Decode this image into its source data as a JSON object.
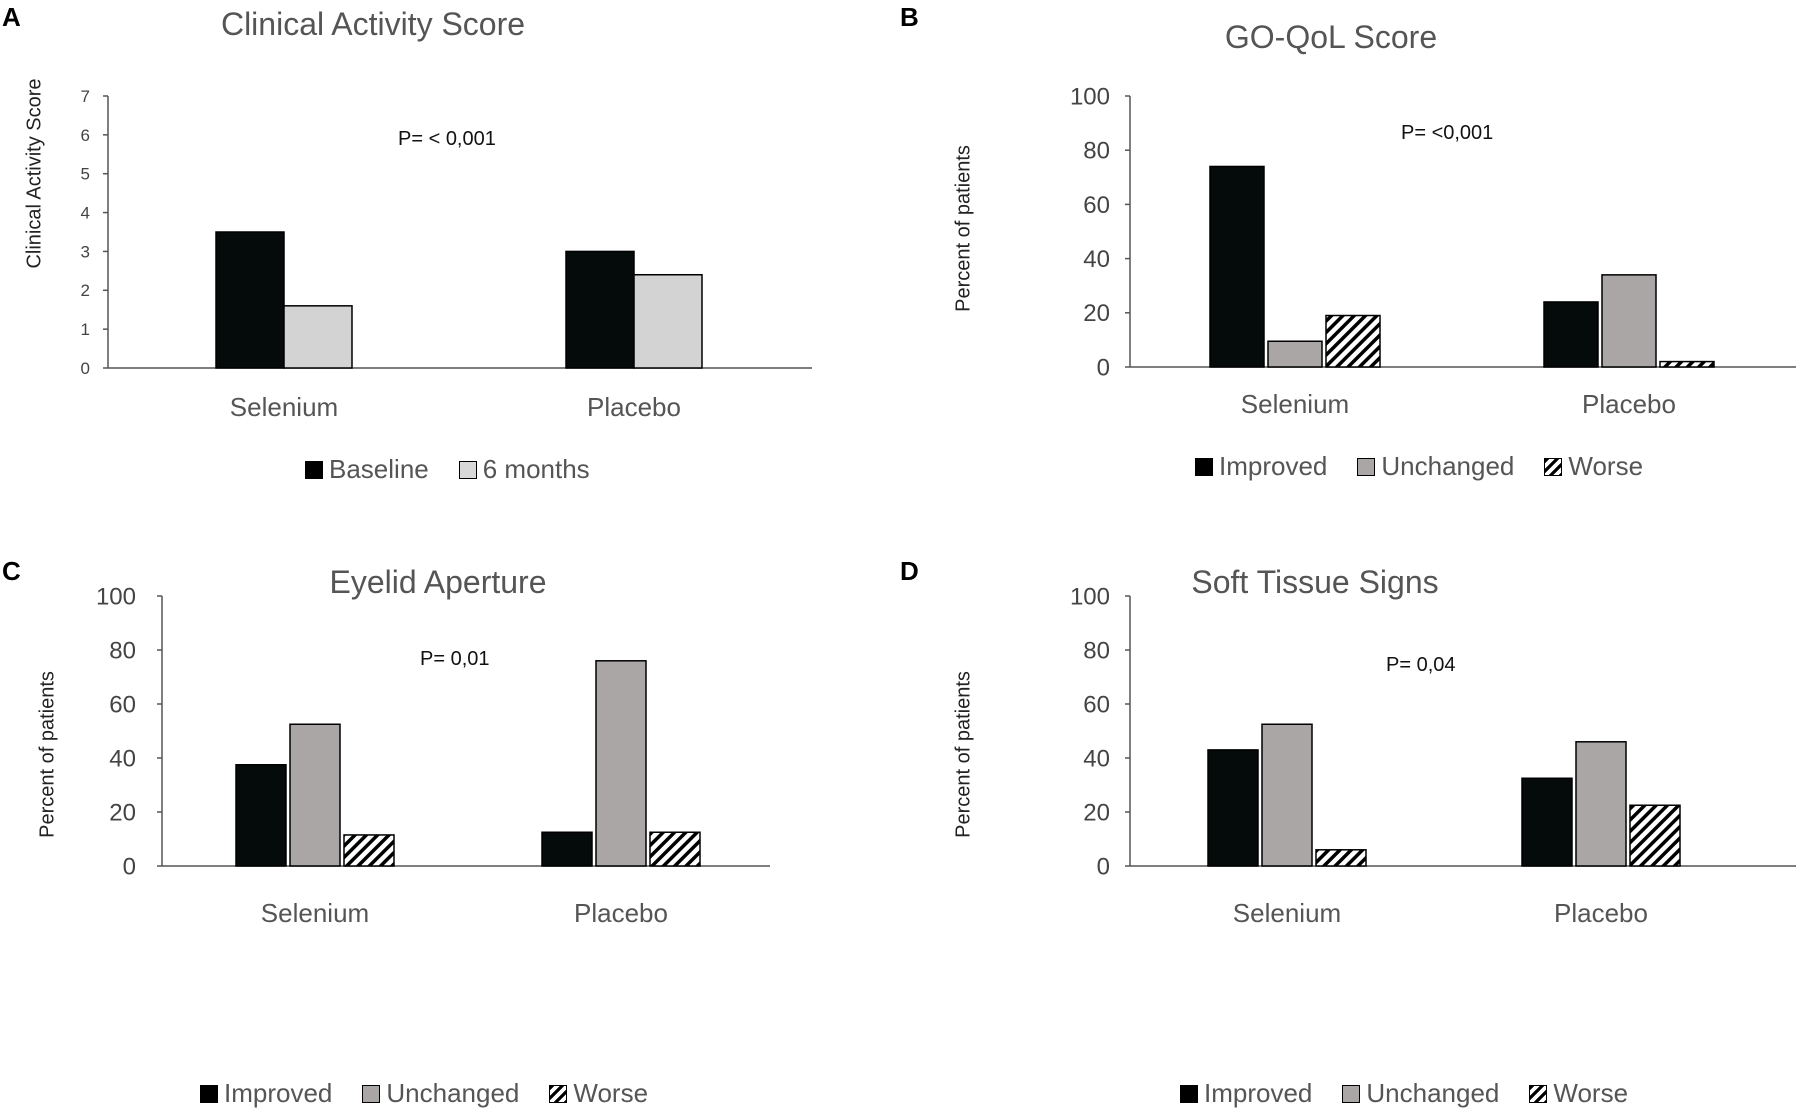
{
  "colors": {
    "black": "#050a0a",
    "light_gray": "#d3d3d3",
    "gray": "#aaa6a6",
    "hatch": "#000000"
  },
  "chart_data": [
    {
      "id": "A",
      "type": "bar",
      "title": "Clinical Activity Score",
      "ylabel": "Clinical Activity Score",
      "xlabel": "",
      "pvalue": "P= < 0,001",
      "ylim": [
        0,
        7
      ],
      "yticks": [
        "0",
        "1",
        "2",
        "3",
        "4",
        "5",
        "6",
        "7"
      ],
      "categories": [
        "Selenium",
        "Placebo"
      ],
      "series": [
        {
          "name": "Baseline",
          "style": "black",
          "values": [
            3.5,
            3.0
          ]
        },
        {
          "name": "6 months",
          "style": "light",
          "values": [
            1.6,
            2.4
          ]
        }
      ]
    },
    {
      "id": "B",
      "type": "bar",
      "title": "GO-QoL Score",
      "ylabel": "Percent of patients",
      "xlabel": "",
      "pvalue": "P= <0,001",
      "ylim": [
        0,
        100
      ],
      "yticks": [
        "0",
        "20",
        "40",
        "60",
        "80",
        "100"
      ],
      "categories": [
        "Selenium",
        "Placebo"
      ],
      "series": [
        {
          "name": "Improved",
          "style": "black",
          "values": [
            74,
            24
          ]
        },
        {
          "name": "Unchanged",
          "style": "gray",
          "values": [
            9.5,
            34
          ]
        },
        {
          "name": "Worse",
          "style": "hatch",
          "values": [
            19,
            2
          ]
        }
      ]
    },
    {
      "id": "C",
      "type": "bar",
      "title": "Eyelid Aperture",
      "ylabel": "Percent of patients",
      "xlabel": "",
      "pvalue": "P= 0,01",
      "ylim": [
        0,
        100
      ],
      "yticks": [
        "0",
        "20",
        "40",
        "60",
        "80",
        "100"
      ],
      "categories": [
        "Selenium",
        "Placebo"
      ],
      "series": [
        {
          "name": "Improved",
          "style": "black",
          "values": [
            37.5,
            12.5
          ]
        },
        {
          "name": "Unchanged",
          "style": "gray",
          "values": [
            52.5,
            76
          ]
        },
        {
          "name": "Worse",
          "style": "hatch",
          "values": [
            11.5,
            12.5
          ]
        }
      ]
    },
    {
      "id": "D",
      "type": "bar",
      "title": "Soft Tissue Signs",
      "ylabel": "Percent of patients",
      "xlabel": "",
      "pvalue": "P= 0,04",
      "ylim": [
        0,
        100
      ],
      "yticks": [
        "0",
        "20",
        "40",
        "60",
        "80",
        "100"
      ],
      "categories": [
        "Selenium",
        "Placebo"
      ],
      "series": [
        {
          "name": "Improved",
          "style": "black",
          "values": [
            43,
            32.5
          ]
        },
        {
          "name": "Unchanged",
          "style": "gray",
          "values": [
            52.5,
            46
          ]
        },
        {
          "name": "Worse",
          "style": "hatch",
          "values": [
            6,
            22.5
          ]
        }
      ]
    }
  ]
}
